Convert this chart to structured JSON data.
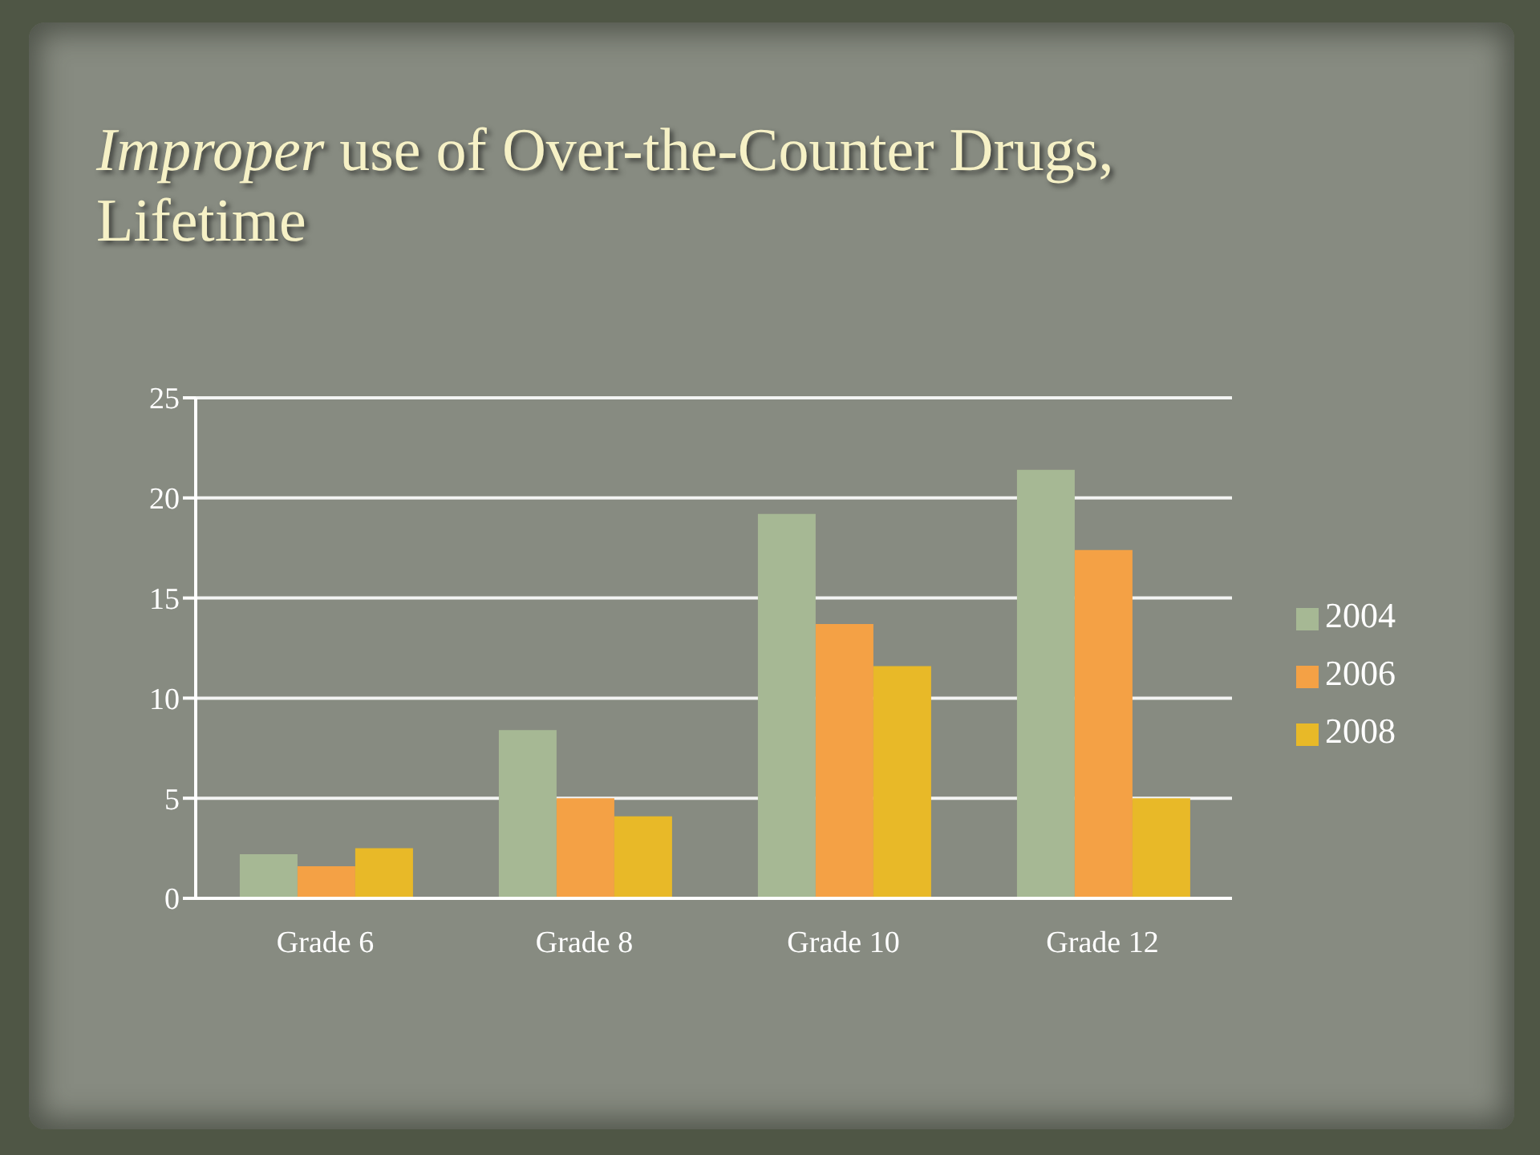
{
  "chart_data": {
    "type": "bar",
    "title": "Improper use of Over-the-Counter Drugs, Lifetime",
    "categories": [
      "Grade 6",
      "Grade 8",
      "Grade 10",
      "Grade 12"
    ],
    "series": [
      {
        "name": "2004",
        "color": "#a6b894",
        "values": [
          2.2,
          8.4,
          19.2,
          21.4
        ]
      },
      {
        "name": "2006",
        "color": "#f4a145",
        "values": [
          1.6,
          5.0,
          13.7,
          17.4
        ]
      },
      {
        "name": "2008",
        "color": "#e8b928",
        "values": [
          2.5,
          4.1,
          11.6,
          5.0
        ]
      }
    ],
    "ylim": [
      0,
      25
    ],
    "yticks": [
      0,
      5,
      10,
      15,
      20,
      25
    ],
    "grid": "y",
    "legend": "right"
  }
}
